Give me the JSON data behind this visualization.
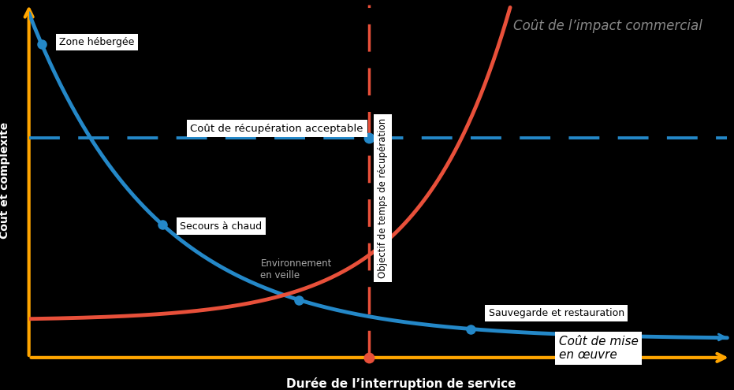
{
  "background_color": "#000000",
  "text_color": "#cccccc",
  "axis_color": "#FFA500",
  "blue_color": "#2488C8",
  "red_color": "#E8503A",
  "dashed_blue_color": "#2488C8",
  "vline_color": "#E8503A",
  "title": "Coût de l’impact commercial",
  "xlabel": "Durée de l’interruption de service",
  "ylabel": "Coût et complexité",
  "vline_label": "Objectif de temps de récupération",
  "hline_label": "Coût de récupération acceptable",
  "annotation_hosted": "Zone hébergée",
  "annotation_hot": "Secours à chaud",
  "annotation_standby": "Environnement\nen veille",
  "annotation_backup": "Sauvegarde et restauration",
  "annotation_impl_cost": "Coût de mise\nen œuvre",
  "xlim": [
    0,
    10
  ],
  "ylim": [
    0,
    10
  ],
  "rto_x": 4.85,
  "hline_y": 6.2,
  "blue_decay_a": 9.2,
  "blue_decay_b": 0.52,
  "blue_decay_c": 0.55,
  "red_start_y": 1.05,
  "red_exp_a": 0.042,
  "red_exp_b": 0.78,
  "dot_hosted_x": 0.18,
  "dot_hot_x": 1.9,
  "dot_standby_x": 3.85,
  "dot_backup_x": 6.3
}
